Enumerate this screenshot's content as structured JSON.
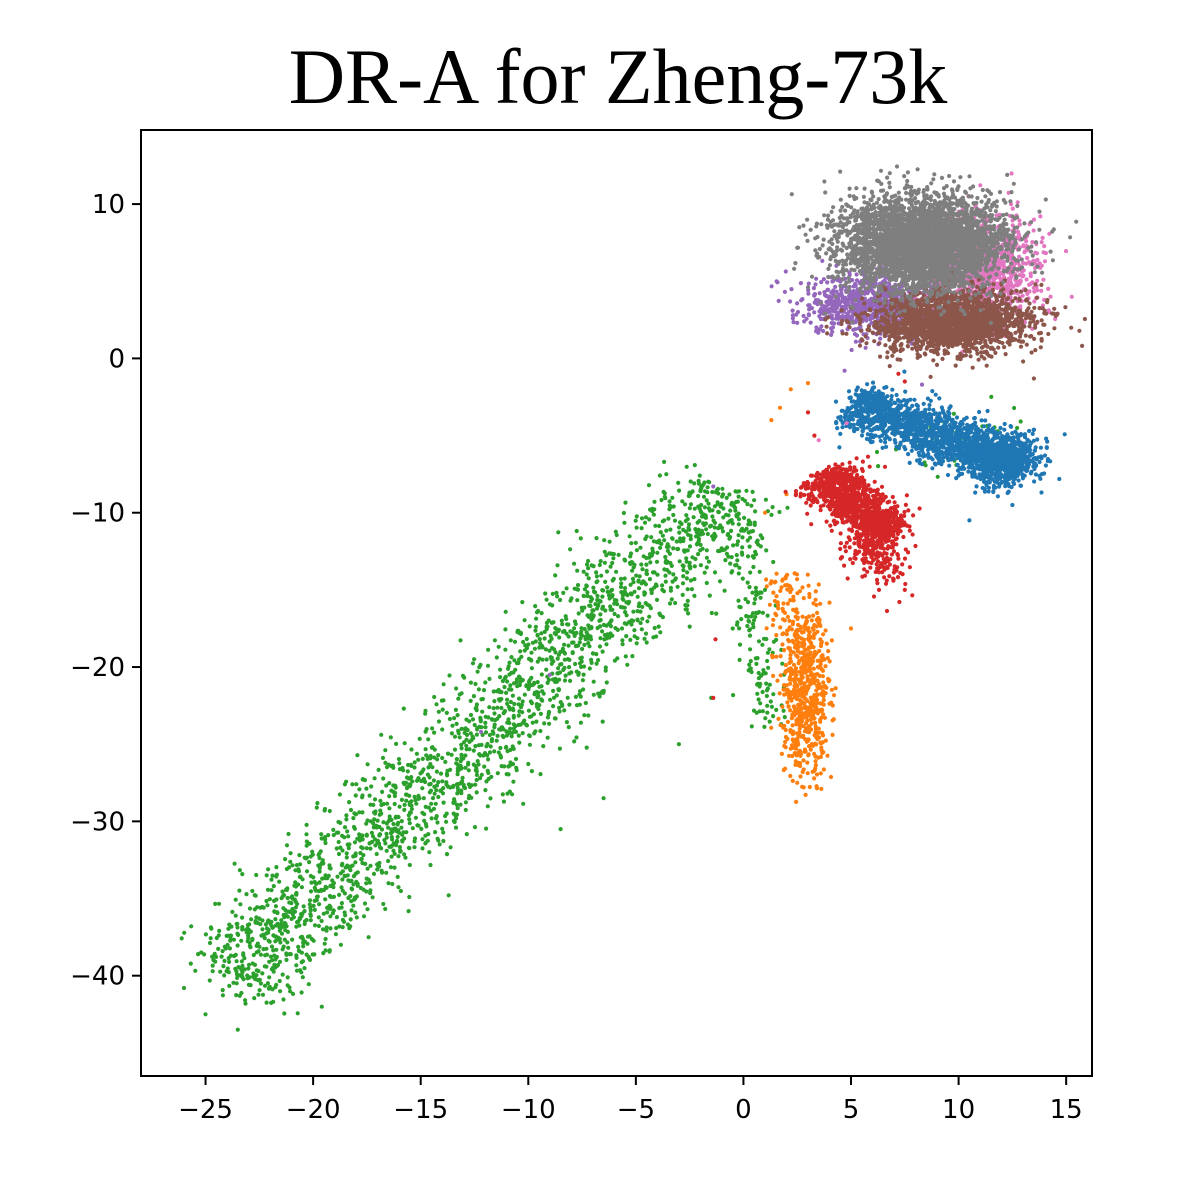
{
  "chart_data": {
    "type": "scatter",
    "title": "DR-A for Zheng-73k",
    "xlabel": "",
    "ylabel": "",
    "xlim": [
      -28,
      16.2
    ],
    "ylim": [
      -46.5,
      14.8
    ],
    "xticks": [
      -25,
      -20,
      -15,
      -10,
      -5,
      0,
      5,
      10,
      15
    ],
    "yticks": [
      10,
      0,
      -10,
      -20,
      -30,
      -40
    ],
    "xtick_labels": [
      "−25",
      "−20",
      "−15",
      "−10",
      "−5",
      "0",
      "5",
      "10",
      "15"
    ],
    "ytick_labels": [
      "10",
      "0",
      "−10",
      "−20",
      "−30",
      "−40"
    ],
    "grid": false,
    "legend": "none",
    "series": [
      {
        "color": "#2ca02c",
        "clusters": [
          {
            "shape": "line",
            "from": [
              -24,
              -40.5
            ],
            "to": [
              -0.5,
              -8.5
            ],
            "spread": 1.5,
            "count": 2200
          },
          {
            "shape": "line",
            "from": [
              -0.5,
              -9
            ],
            "to": [
              1.5,
              -24
            ],
            "spread": 0.5,
            "count": 160
          },
          {
            "shape": "blob",
            "center": [
              9.5,
              -5.5
            ],
            "sd": [
              1.6,
              1.0
            ],
            "count": 50
          }
        ],
        "points": [
          [
            -26,
            -40.8
          ],
          [
            -25,
            -42.5
          ],
          [
            -23.5,
            -43.5
          ],
          [
            -3,
            -25
          ],
          [
            -1.5,
            -22
          ],
          [
            -8.5,
            -30.5
          ],
          [
            -6.5,
            -28.5
          ],
          [
            -0.5,
            -17.5
          ],
          [
            1,
            -15
          ],
          [
            -12,
            -21
          ]
        ]
      },
      {
        "color": "#ff7f0e",
        "clusters": [
          {
            "shape": "blob",
            "center": [
              2.9,
              -21.5
            ],
            "sd": [
              0.55,
              2.6
            ],
            "count": 650
          },
          {
            "shape": "line",
            "from": [
              1.8,
              -14
            ],
            "to": [
              2.6,
              -19
            ],
            "spread": 0.5,
            "count": 70
          }
        ],
        "points": [
          [
            2.5,
            -27.5
          ],
          [
            2.8,
            -27.8
          ],
          [
            5,
            -17.5
          ],
          [
            2.2,
            -2
          ],
          [
            3,
            -1.6
          ],
          [
            1.7,
            -3.2
          ],
          [
            1.3,
            -4
          ],
          [
            2,
            -8.8
          ],
          [
            1,
            -10
          ]
        ]
      },
      {
        "color": "#1f77b4",
        "clusters": [
          {
            "shape": "line",
            "from": [
              5,
              -3
            ],
            "to": [
              13,
              -7
            ],
            "spread": 0.8,
            "count": 1700
          },
          {
            "shape": "blob",
            "center": [
              12,
              -6.6
            ],
            "sd": [
              0.9,
              0.8
            ],
            "count": 500
          }
        ],
        "points": [
          [
            4.3,
            -2.8
          ],
          [
            14.1,
            -5.8
          ],
          [
            13.8,
            -7.8
          ],
          [
            12.5,
            -9.5
          ],
          [
            10.5,
            -10.5
          ]
        ]
      },
      {
        "color": "#d62728",
        "clusters": [
          {
            "shape": "line",
            "from": [
              3.7,
              -7.5
            ],
            "to": [
              6.8,
              -11.5
            ],
            "spread": 0.75,
            "count": 1100
          },
          {
            "shape": "blob",
            "center": [
              6.2,
              -12.5
            ],
            "sd": [
              0.7,
              1.1
            ],
            "count": 220
          }
        ],
        "points": [
          [
            3,
            -3.5
          ],
          [
            3.3,
            -5
          ],
          [
            6.3,
            -15
          ],
          [
            7.5,
            -15
          ],
          [
            -1.3,
            -18.2
          ],
          [
            -1.4,
            -22
          ],
          [
            7.2,
            -1
          ],
          [
            7.5,
            -1.5
          ]
        ]
      },
      {
        "color": "#9467bd",
        "clusters": [
          {
            "shape": "blob",
            "center": [
              6,
              3.4
            ],
            "sd": [
              1.6,
              1.0
            ],
            "count": 850
          }
        ],
        "points": [
          [
            2.5,
            2.3
          ],
          [
            2.3,
            2.6
          ],
          [
            -1.4,
            -8.3
          ],
          [
            -12.2,
            -24.2
          ],
          [
            -9,
            -20.5
          ],
          [
            4.7,
            -0.8
          ],
          [
            8.3,
            -1.7
          ]
        ]
      },
      {
        "color": "#e377c2",
        "clusters": [
          {
            "shape": "blob",
            "center": [
              11.3,
              5.6
            ],
            "sd": [
              1.3,
              1.7
            ],
            "count": 900
          }
        ],
        "points": [
          [
            14.2,
            3
          ],
          [
            13.3,
            8.7
          ],
          [
            13.8,
            9.2
          ],
          [
            10.5,
            10.5
          ],
          [
            3.5,
            -5.3
          ],
          [
            4.8,
            -4.2
          ]
        ]
      },
      {
        "color": "#8c564b",
        "clusters": [
          {
            "shape": "blob",
            "center": [
              9.6,
              2.4
            ],
            "sd": [
              1.8,
              1.0
            ],
            "count": 2000
          }
        ],
        "points": [
          [
            13.5,
            -1.3
          ],
          [
            13,
            -0.2
          ],
          [
            6.8,
            -0.5
          ],
          [
            8.7,
            -1.2
          ],
          [
            14,
            3.1
          ]
        ]
      },
      {
        "color": "#7f7f7f",
        "clusters": [
          {
            "shape": "blob",
            "center": [
              8.3,
              7.4
            ],
            "sd": [
              1.9,
              1.5
            ],
            "count": 3800
          }
        ],
        "points": [
          [
            6.8,
            12
          ],
          [
            3,
            4.6
          ],
          [
            3.6,
            3.6
          ],
          [
            11.5,
            2.3
          ]
        ]
      }
    ]
  }
}
